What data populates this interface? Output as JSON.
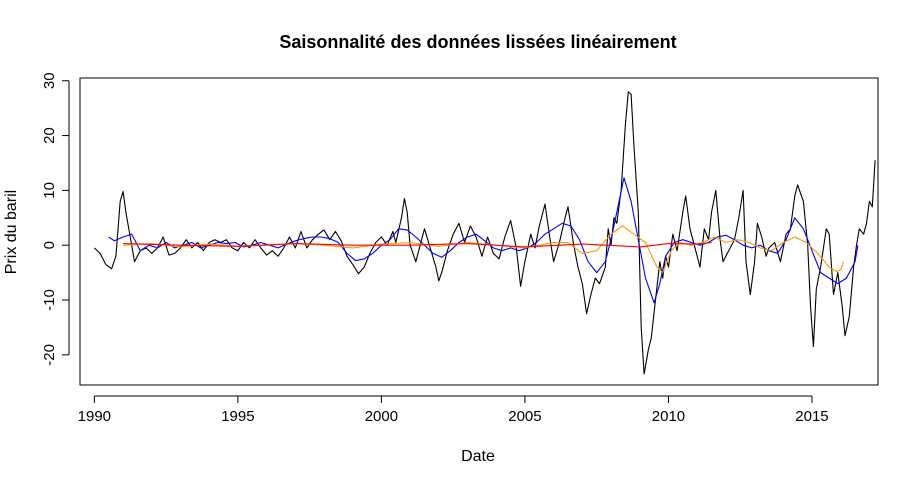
{
  "chart_data": {
    "type": "line",
    "title": "Saisonnalité des données lissées linéairement",
    "xlabel": "Date",
    "ylabel": "Prix du baril",
    "xlim": [
      1989.5,
      2017.3
    ],
    "ylim": [
      -25.5,
      30.5
    ],
    "xticks": [
      1990,
      1995,
      2000,
      2005,
      2010,
      2015
    ],
    "yticks": [
      -20,
      -10,
      0,
      10,
      20,
      30
    ],
    "grid": false,
    "legend": "none",
    "series": [
      {
        "color": "#000000",
        "points": [
          [
            1990.0,
            -0.5
          ],
          [
            1990.2,
            -1.5
          ],
          [
            1990.4,
            -3.5
          ],
          [
            1990.6,
            -4.3
          ],
          [
            1990.75,
            -2
          ],
          [
            1990.9,
            8
          ],
          [
            1991.0,
            9.8
          ],
          [
            1991.1,
            6
          ],
          [
            1991.3,
            0
          ],
          [
            1991.4,
            -3
          ],
          [
            1991.6,
            -1
          ],
          [
            1991.8,
            -0.5
          ],
          [
            1992.0,
            -1.5
          ],
          [
            1992.2,
            -0.5
          ],
          [
            1992.4,
            1.5
          ],
          [
            1992.6,
            -1.8
          ],
          [
            1992.8,
            -1.5
          ],
          [
            1993.0,
            -0.5
          ],
          [
            1993.2,
            1
          ],
          [
            1993.4,
            -0.5
          ],
          [
            1993.6,
            0.5
          ],
          [
            1993.8,
            -1
          ],
          [
            1994.0,
            0.5
          ],
          [
            1994.2,
            1
          ],
          [
            1994.4,
            0.5
          ],
          [
            1994.6,
            1
          ],
          [
            1994.8,
            -0.5
          ],
          [
            1995.0,
            -1
          ],
          [
            1995.2,
            0.5
          ],
          [
            1995.4,
            -0.5
          ],
          [
            1995.6,
            1
          ],
          [
            1995.8,
            -0.5
          ],
          [
            1996.0,
            -1.8
          ],
          [
            1996.2,
            -1
          ],
          [
            1996.4,
            -2
          ],
          [
            1996.6,
            -0.5
          ],
          [
            1996.8,
            1.5
          ],
          [
            1997.0,
            -0.5
          ],
          [
            1997.2,
            2.5
          ],
          [
            1997.4,
            -0.5
          ],
          [
            1997.6,
            1
          ],
          [
            1997.8,
            2
          ],
          [
            1998.0,
            2.8
          ],
          [
            1998.2,
            1
          ],
          [
            1998.4,
            2.5
          ],
          [
            1998.6,
            0.8
          ],
          [
            1998.8,
            -2
          ],
          [
            1999.0,
            -3.5
          ],
          [
            1999.2,
            -5.2
          ],
          [
            1999.4,
            -4
          ],
          [
            1999.6,
            -1.5
          ],
          [
            1999.8,
            0.5
          ],
          [
            2000.0,
            1.5
          ],
          [
            2000.2,
            0
          ],
          [
            2000.4,
            2.5
          ],
          [
            2000.5,
            0.5
          ],
          [
            2000.7,
            5
          ],
          [
            2000.8,
            8.5
          ],
          [
            2000.9,
            6
          ],
          [
            2001.0,
            0
          ],
          [
            2001.2,
            -3
          ],
          [
            2001.4,
            1
          ],
          [
            2001.5,
            3
          ],
          [
            2001.7,
            -0.5
          ],
          [
            2001.9,
            -4
          ],
          [
            2002.0,
            -6.5
          ],
          [
            2002.1,
            -5
          ],
          [
            2002.3,
            -1
          ],
          [
            2002.5,
            2
          ],
          [
            2002.7,
            4
          ],
          [
            2002.9,
            0.5
          ],
          [
            2003.1,
            3.5
          ],
          [
            2003.3,
            1.5
          ],
          [
            2003.5,
            -2
          ],
          [
            2003.7,
            1.5
          ],
          [
            2003.9,
            -1.5
          ],
          [
            2004.1,
            -2.5
          ],
          [
            2004.3,
            1.5
          ],
          [
            2004.5,
            4.5
          ],
          [
            2004.7,
            -0.5
          ],
          [
            2004.85,
            -7.5
          ],
          [
            2005.0,
            -3
          ],
          [
            2005.2,
            2
          ],
          [
            2005.35,
            -0.5
          ],
          [
            2005.5,
            3.5
          ],
          [
            2005.7,
            7.5
          ],
          [
            2005.85,
            2
          ],
          [
            2006.0,
            -3
          ],
          [
            2006.2,
            0.5
          ],
          [
            2006.4,
            5
          ],
          [
            2006.5,
            7
          ],
          [
            2006.7,
            0
          ],
          [
            2006.85,
            -4
          ],
          [
            2007.0,
            -7
          ],
          [
            2007.15,
            -12.5
          ],
          [
            2007.3,
            -9
          ],
          [
            2007.45,
            -6
          ],
          [
            2007.6,
            -7
          ],
          [
            2007.8,
            -4
          ],
          [
            2007.9,
            3
          ],
          [
            2008.0,
            0
          ],
          [
            2008.1,
            5
          ],
          [
            2008.2,
            4
          ],
          [
            2008.35,
            10
          ],
          [
            2008.5,
            22
          ],
          [
            2008.6,
            28
          ],
          [
            2008.7,
            27.5
          ],
          [
            2008.8,
            18
          ],
          [
            2008.95,
            6
          ],
          [
            2009.05,
            -15
          ],
          [
            2009.15,
            -23.5
          ],
          [
            2009.3,
            -19
          ],
          [
            2009.4,
            -17
          ],
          [
            2009.55,
            -10
          ],
          [
            2009.7,
            -3
          ],
          [
            2009.8,
            -6
          ],
          [
            2009.9,
            -2
          ],
          [
            2010.0,
            -4
          ],
          [
            2010.15,
            2
          ],
          [
            2010.3,
            -1
          ],
          [
            2010.5,
            6
          ],
          [
            2010.6,
            9
          ],
          [
            2010.75,
            3
          ],
          [
            2010.9,
            0
          ],
          [
            2011.1,
            -4
          ],
          [
            2011.25,
            3
          ],
          [
            2011.4,
            1
          ],
          [
            2011.5,
            6
          ],
          [
            2011.65,
            10
          ],
          [
            2011.8,
            1
          ],
          [
            2011.9,
            -3
          ],
          [
            2012.1,
            -1
          ],
          [
            2012.3,
            1
          ],
          [
            2012.45,
            5
          ],
          [
            2012.6,
            10
          ],
          [
            2012.7,
            -3
          ],
          [
            2012.85,
            -9
          ],
          [
            2013.0,
            -3
          ],
          [
            2013.1,
            4
          ],
          [
            2013.25,
            1.5
          ],
          [
            2013.4,
            -2
          ],
          [
            2013.5,
            -0.5
          ],
          [
            2013.7,
            0.5
          ],
          [
            2013.9,
            -3
          ],
          [
            2014.1,
            2
          ],
          [
            2014.25,
            3
          ],
          [
            2014.4,
            9
          ],
          [
            2014.5,
            11
          ],
          [
            2014.7,
            8
          ],
          [
            2014.85,
            0
          ],
          [
            2014.95,
            -11
          ],
          [
            2015.05,
            -18.5
          ],
          [
            2015.15,
            -8
          ],
          [
            2015.3,
            -4
          ],
          [
            2015.5,
            3
          ],
          [
            2015.6,
            2
          ],
          [
            2015.75,
            -9
          ],
          [
            2015.9,
            -5
          ],
          [
            2016.05,
            -11
          ],
          [
            2016.15,
            -16.5
          ],
          [
            2016.3,
            -13
          ],
          [
            2016.45,
            -4
          ],
          [
            2016.55,
            0
          ],
          [
            2016.65,
            3
          ],
          [
            2016.8,
            2
          ],
          [
            2016.9,
            4
          ],
          [
            2017.0,
            8
          ],
          [
            2017.1,
            7
          ],
          [
            2017.2,
            15.5
          ]
        ]
      },
      {
        "color": "#0000ff",
        "points": [
          [
            1990.5,
            1.5
          ],
          [
            1990.7,
            0.8
          ],
          [
            1991.0,
            1.5
          ],
          [
            1991.3,
            2
          ],
          [
            1991.6,
            -1
          ],
          [
            1991.9,
            0
          ],
          [
            1992.2,
            -0.5
          ],
          [
            1992.5,
            0.5
          ],
          [
            1992.8,
            -0.5
          ],
          [
            1993.1,
            0
          ],
          [
            1993.4,
            0.5
          ],
          [
            1993.7,
            -0.5
          ],
          [
            1994.0,
            0
          ],
          [
            1994.3,
            0.5
          ],
          [
            1994.6,
            0.3
          ],
          [
            1994.9,
            0.5
          ],
          [
            1995.2,
            -0.3
          ],
          [
            1995.5,
            0
          ],
          [
            1995.8,
            0.5
          ],
          [
            1996.1,
            0
          ],
          [
            1996.4,
            -0.5
          ],
          [
            1996.7,
            0.2
          ],
          [
            1997.0,
            0.8
          ],
          [
            1997.3,
            1.2
          ],
          [
            1997.6,
            1.5
          ],
          [
            1997.9,
            1.5
          ],
          [
            1998.2,
            1.2
          ],
          [
            1998.5,
            0.5
          ],
          [
            1998.8,
            -1.5
          ],
          [
            1999.1,
            -2.8
          ],
          [
            1999.4,
            -2.5
          ],
          [
            1999.7,
            -1.5
          ],
          [
            2000.0,
            0
          ],
          [
            2000.3,
            1
          ],
          [
            2000.6,
            3
          ],
          [
            2000.9,
            2.8
          ],
          [
            2001.2,
            1.5
          ],
          [
            2001.5,
            0
          ],
          [
            2001.8,
            -1.5
          ],
          [
            2002.1,
            -2.2
          ],
          [
            2002.4,
            -1
          ],
          [
            2002.7,
            0.5
          ],
          [
            2003.0,
            1.5
          ],
          [
            2003.3,
            2
          ],
          [
            2003.6,
            0.8
          ],
          [
            2003.9,
            -0.5
          ],
          [
            2004.2,
            -1
          ],
          [
            2004.5,
            -0.5
          ],
          [
            2004.8,
            -1
          ],
          [
            2005.1,
            -0.5
          ],
          [
            2005.4,
            0.5
          ],
          [
            2005.7,
            2
          ],
          [
            2006.0,
            3
          ],
          [
            2006.3,
            4
          ],
          [
            2006.6,
            3.5
          ],
          [
            2006.9,
            1
          ],
          [
            2007.2,
            -3
          ],
          [
            2007.5,
            -5
          ],
          [
            2007.8,
            -3
          ],
          [
            2008.0,
            1
          ],
          [
            2008.2,
            6
          ],
          [
            2008.45,
            12.3
          ],
          [
            2008.7,
            8
          ],
          [
            2008.95,
            1
          ],
          [
            2009.2,
            -6
          ],
          [
            2009.5,
            -10.5
          ],
          [
            2009.7,
            -7
          ],
          [
            2009.9,
            -2
          ],
          [
            2010.2,
            0.5
          ],
          [
            2010.5,
            1
          ],
          [
            2010.8,
            0.5
          ],
          [
            2011.1,
            0
          ],
          [
            2011.4,
            0.5
          ],
          [
            2011.7,
            1.5
          ],
          [
            2012.0,
            1.8
          ],
          [
            2012.3,
            1
          ],
          [
            2012.6,
            0
          ],
          [
            2012.9,
            -0.5
          ],
          [
            2013.2,
            0
          ],
          [
            2013.5,
            -1
          ],
          [
            2013.8,
            -1.5
          ],
          [
            2014.1,
            1
          ],
          [
            2014.4,
            5
          ],
          [
            2014.7,
            3
          ],
          [
            2015.0,
            -1
          ],
          [
            2015.3,
            -5
          ],
          [
            2015.6,
            -6
          ],
          [
            2015.9,
            -7
          ],
          [
            2016.2,
            -6
          ],
          [
            2016.5,
            -3
          ],
          [
            2016.6,
            0
          ]
        ]
      },
      {
        "color": "#ff9900",
        "points": [
          [
            1991.0,
            0
          ],
          [
            1992.0,
            0.3
          ],
          [
            1993.0,
            -0.3
          ],
          [
            1994.0,
            0.2
          ],
          [
            1995.0,
            -0.2
          ],
          [
            1996.0,
            0
          ],
          [
            1997.0,
            0.3
          ],
          [
            1998.0,
            0
          ],
          [
            1999.0,
            -0.5
          ],
          [
            2000.0,
            0.2
          ],
          [
            2001.0,
            0.5
          ],
          [
            2002.0,
            -0.2
          ],
          [
            2003.0,
            0.5
          ],
          [
            2004.0,
            0
          ],
          [
            2005.0,
            -0.5
          ],
          [
            2006.0,
            0.5
          ],
          [
            2006.5,
            0.5
          ],
          [
            2007.0,
            -1.5
          ],
          [
            2007.5,
            -1
          ],
          [
            2008.0,
            2
          ],
          [
            2008.4,
            3.5
          ],
          [
            2008.8,
            2
          ],
          [
            2009.2,
            0.5
          ],
          [
            2009.6,
            -4
          ],
          [
            2009.8,
            -5
          ],
          [
            2010.1,
            -1
          ],
          [
            2010.4,
            0.5
          ],
          [
            2010.8,
            0
          ],
          [
            2011.2,
            0.5
          ],
          [
            2011.6,
            1.5
          ],
          [
            2012.0,
            0.5
          ],
          [
            2012.4,
            1
          ],
          [
            2012.8,
            0.5
          ],
          [
            2013.2,
            -0.5
          ],
          [
            2013.6,
            -1
          ],
          [
            2014.0,
            0.5
          ],
          [
            2014.4,
            1.5
          ],
          [
            2014.8,
            0.5
          ],
          [
            2015.2,
            -1.5
          ],
          [
            2015.6,
            -4
          ],
          [
            2015.85,
            -4.8
          ],
          [
            2016.0,
            -4.5
          ],
          [
            2016.1,
            -3
          ]
        ]
      },
      {
        "color": "#ff0000",
        "points": [
          [
            1991.0,
            0.3
          ],
          [
            1993.0,
            0
          ],
          [
            1995.0,
            -0.2
          ],
          [
            1997.0,
            0.3
          ],
          [
            1999.0,
            0
          ],
          [
            2001.0,
            0
          ],
          [
            2003.0,
            0.3
          ],
          [
            2005.0,
            -0.3
          ],
          [
            2007.0,
            0.2
          ],
          [
            2009.0,
            -0.3
          ],
          [
            2010.0,
            0.3
          ],
          [
            2011.0,
            0.2
          ],
          [
            2011.5,
            0.5
          ]
        ]
      }
    ]
  }
}
